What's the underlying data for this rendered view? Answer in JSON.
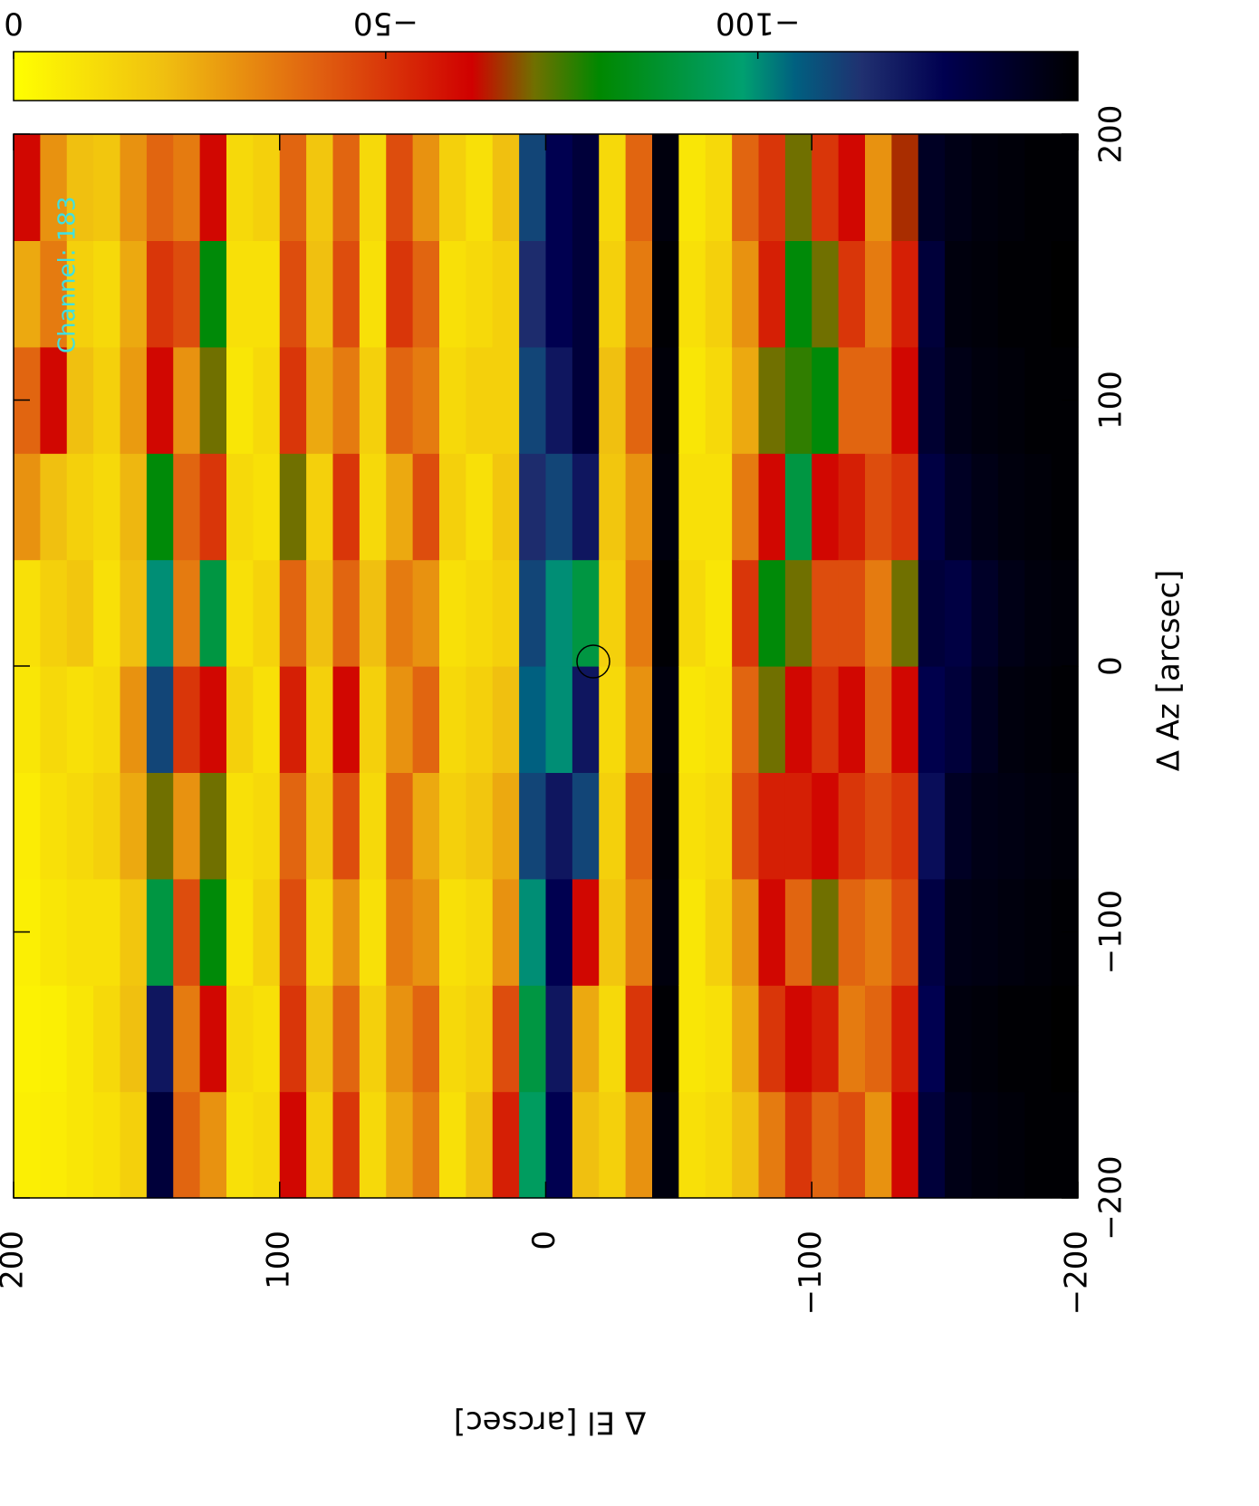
{
  "chart_data": {
    "type": "heatmap",
    "xlabel": "Δ Az [arcsec]",
    "ylabel": "Δ El [arcsec]",
    "annotation": "Channel: 183",
    "xlim": [
      -200,
      200
    ],
    "ylim": [
      -200,
      200
    ],
    "xticks": [
      {
        "value": -200,
        "label": "−200"
      },
      {
        "value": -100,
        "label": "−100"
      },
      0,
      100,
      200
    ],
    "yticks": [
      {
        "value": -200,
        "label": "−200"
      },
      {
        "value": -100,
        "label": "−100"
      },
      0,
      100,
      200
    ],
    "zlim": [
      0,
      -143
    ],
    "zticks": [
      0,
      {
        "value": -50,
        "label": "−50"
      },
      {
        "value": -100,
        "label": "−100"
      }
    ],
    "colorscale": [
      [
        0,
        "#ffff00"
      ],
      [
        -20,
        "#f0c010"
      ],
      [
        -41,
        "#e06010"
      ],
      [
        -61.6,
        "#d00000"
      ],
      [
        -70,
        "#707000"
      ],
      [
        -78.7,
        "#008800"
      ],
      [
        -98,
        "#00a070"
      ],
      [
        -105,
        "#006080"
      ],
      [
        -114,
        "#203070"
      ],
      [
        -125,
        "#000050"
      ],
      [
        -143,
        "#000000"
      ]
    ],
    "z": [
      [
        -5,
        -4,
        -5,
        -6,
        -8,
        -10,
        -30,
        -40,
        -25,
        -60
      ],
      [
        -6,
        -5,
        -8,
        -10,
        -12,
        -15,
        -20,
        -60,
        -35,
        -30
      ],
      [
        -8,
        -8,
        -10,
        -12,
        -10,
        -18,
        -15,
        -20,
        -15,
        -20
      ],
      [
        -10,
        -12,
        -10,
        -15,
        -12,
        -10,
        -12,
        -15,
        -12,
        -18
      ],
      [
        -15,
        -20,
        -18,
        -25,
        -30,
        -20,
        -22,
        -28,
        -25,
        -30
      ],
      [
        -130,
        -120,
        -90,
        -70,
        -110,
        -100,
        -80,
        -60,
        -50,
        -40
      ],
      [
        -40,
        -35,
        -45,
        -30,
        -50,
        -35,
        -40,
        -30,
        -45,
        -35
      ],
      [
        -30,
        -60,
        -80,
        -70,
        -60,
        -90,
        -50,
        -70,
        -80,
        -60
      ],
      [
        -10,
        -12,
        -8,
        -10,
        -15,
        -10,
        -12,
        -8,
        -10,
        -12
      ],
      [
        -12,
        -10,
        -15,
        -12,
        -10,
        -14,
        -10,
        -12,
        -10,
        -15
      ],
      [
        -60,
        -50,
        -45,
        -40,
        -55,
        -40,
        -70,
        -50,
        -45,
        -40
      ],
      [
        -15,
        -20,
        -12,
        -18,
        -15,
        -20,
        -15,
        -25,
        -20,
        -18
      ],
      [
        -50,
        -40,
        -30,
        -45,
        -60,
        -40,
        -50,
        -35,
        -45,
        -40
      ],
      [
        -12,
        -15,
        -10,
        -12,
        -15,
        -20,
        -12,
        -15,
        -10,
        -12
      ],
      [
        -25,
        -30,
        -35,
        -40,
        -30,
        -35,
        -25,
        -40,
        -50,
        -45
      ],
      [
        -35,
        -40,
        -30,
        -25,
        -40,
        -30,
        -45,
        -35,
        -40,
        -30
      ],
      [
        -10,
        -12,
        -10,
        -15,
        -12,
        -10,
        -15,
        -12,
        -10,
        -15
      ],
      [
        -20,
        -15,
        -12,
        -18,
        -15,
        -12,
        -10,
        -15,
        -12,
        -10
      ],
      [
        -55,
        -45,
        -30,
        -25,
        -20,
        -15,
        -18,
        -15,
        -15,
        -20
      ],
      [
        -95,
        -90,
        -100,
        -110,
        -105,
        -110,
        -115,
        -110,
        -115,
        -110
      ],
      [
        -125,
        -120,
        -125,
        -120,
        -100,
        -100,
        -110,
        -120,
        -125,
        -125
      ],
      [
        -20,
        -25,
        -60,
        -110,
        -120,
        -90,
        -120,
        -130,
        -130,
        -130
      ],
      [
        -15,
        -12,
        -18,
        -15,
        -12,
        -15,
        -18,
        -20,
        -15,
        -12
      ],
      [
        -30,
        -50,
        -35,
        -40,
        -30,
        -35,
        -30,
        -40,
        -35,
        -40
      ],
      [
        -140,
        -142,
        -140,
        -141,
        -140,
        -142,
        -140,
        -141,
        -142,
        -140
      ],
      [
        -10,
        -8,
        -8,
        -10,
        -8,
        -12,
        -10,
        -8,
        -10,
        -8
      ],
      [
        -12,
        -10,
        -15,
        -12,
        -10,
        -8,
        -10,
        -12,
        -15,
        -12
      ],
      [
        -20,
        -25,
        -30,
        -45,
        -40,
        -50,
        -35,
        -25,
        -30,
        -40
      ],
      [
        -35,
        -50,
        -60,
        -55,
        -70,
        -80,
        -60,
        -70,
        -55,
        -50
      ],
      [
        -50,
        -60,
        -40,
        -55,
        -60,
        -70,
        -90,
        -75,
        -80,
        -70
      ],
      [
        -40,
        -55,
        -70,
        -60,
        -50,
        -45,
        -60,
        -80,
        -70,
        -50
      ],
      [
        -45,
        -35,
        -40,
        -50,
        -60,
        -45,
        -55,
        -40,
        -50,
        -60
      ],
      [
        -30,
        -40,
        -35,
        -45,
        -40,
        -35,
        -45,
        -40,
        -35,
        -30
      ],
      [
        -60,
        -55,
        -45,
        -50,
        -60,
        -70,
        -50,
        -60,
        -55,
        -65
      ],
      [
        -130,
        -125,
        -128,
        -122,
        -126,
        -130,
        -128,
        -132,
        -130,
        -135
      ],
      [
        -138,
        -140,
        -138,
        -135,
        -130,
        -128,
        -135,
        -138,
        -140,
        -138
      ],
      [
        -140,
        -141,
        -139,
        -138,
        -136,
        -134,
        -138,
        -140,
        -141,
        -140
      ],
      [
        -141,
        -142,
        -140,
        -139,
        -140,
        -138,
        -140,
        -141,
        -142,
        -141
      ],
      [
        -142,
        -142,
        -141,
        -140,
        -141,
        -140,
        -141,
        -142,
        -142,
        -142
      ],
      [
        -142,
        -143,
        -142,
        -141,
        -142,
        -141,
        -142,
        -142,
        -143,
        -142
      ]
    ]
  }
}
